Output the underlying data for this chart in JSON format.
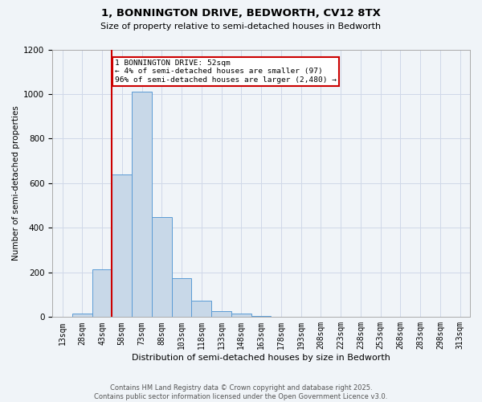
{
  "title_line1": "1, BONNINGTON DRIVE, BEDWORTH, CV12 8TX",
  "title_line2": "Size of property relative to semi-detached houses in Bedworth",
  "xlabel": "Distribution of semi-detached houses by size in Bedworth",
  "ylabel": "Number of semi-detached properties",
  "categories": [
    "13sqm",
    "28sqm",
    "43sqm",
    "58sqm",
    "73sqm",
    "88sqm",
    "103sqm",
    "118sqm",
    "133sqm",
    "148sqm",
    "163sqm",
    "178sqm",
    "193sqm",
    "208sqm",
    "223sqm",
    "238sqm",
    "253sqm",
    "268sqm",
    "283sqm",
    "298sqm",
    "313sqm"
  ],
  "values": [
    0,
    15,
    215,
    640,
    1010,
    450,
    175,
    75,
    25,
    15,
    5,
    3,
    2,
    1,
    0,
    0,
    0,
    0,
    0,
    0,
    0
  ],
  "bar_color": "#c8d8e8",
  "bar_edge_color": "#5b9bd5",
  "vline_x_index": 2.5,
  "annotation_text": "1 BONNINGTON DRIVE: 52sqm\n← 4% of semi-detached houses are smaller (97)\n96% of semi-detached houses are larger (2,480) →",
  "annotation_box_color": "#ffffff",
  "annotation_box_edge_color": "#cc0000",
  "vline_color": "#cc0000",
  "grid_color": "#d0d8e8",
  "background_color": "#f0f4f8",
  "ylim": [
    0,
    1200
  ],
  "yticks": [
    0,
    200,
    400,
    600,
    800,
    1000,
    1200
  ],
  "footer_line1": "Contains HM Land Registry data © Crown copyright and database right 2025.",
  "footer_line2": "Contains public sector information licensed under the Open Government Licence v3.0."
}
